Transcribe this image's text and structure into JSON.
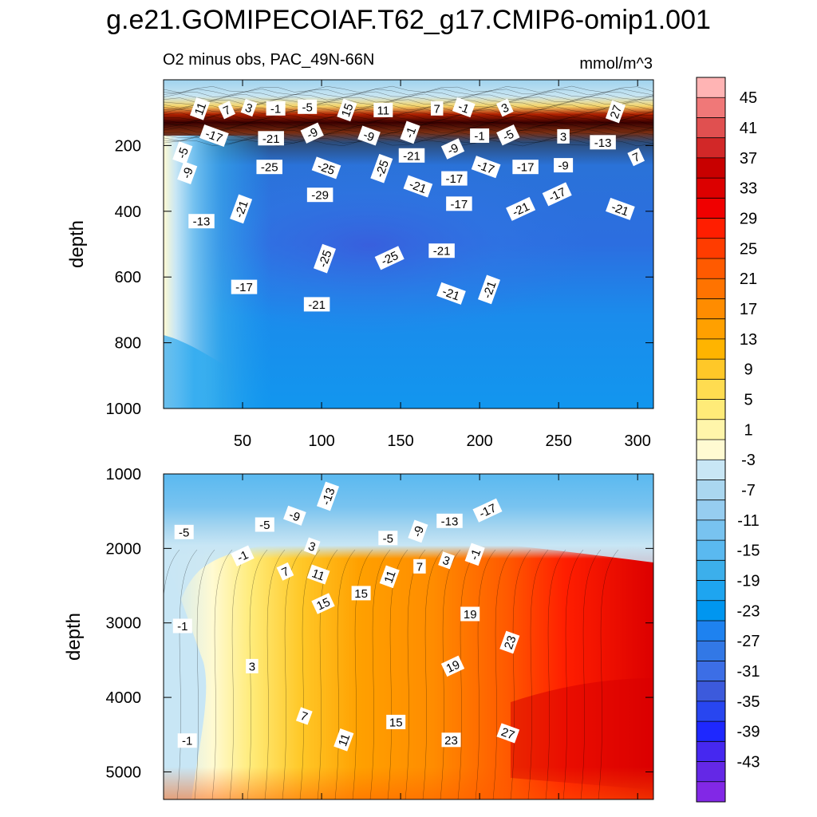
{
  "title": "g.e21.GOMIPECOIAF.T62_g17.CMIP6-omip1.001",
  "subtitle": "O2 minus obs, PAC_49N-66N",
  "units": "mmol/m^3",
  "chart_data": [
    {
      "type": "heatmap",
      "panel": "upper",
      "xlabel": "",
      "ylabel": "depth",
      "x_ticks": [
        50,
        100,
        150,
        200,
        250,
        300
      ],
      "xlim": [
        0,
        310
      ],
      "y_ticks": [
        200,
        400,
        600,
        800,
        1000
      ],
      "ylim": [
        0,
        1000
      ],
      "y_reversed": true,
      "contour_labels": [
        {
          "x": 23,
          "y": 88,
          "v": "11"
        },
        {
          "x": 40,
          "y": 92,
          "v": "7"
        },
        {
          "x": 54,
          "y": 85,
          "v": "3"
        },
        {
          "x": 71,
          "y": 87,
          "v": "-1"
        },
        {
          "x": 91,
          "y": 82,
          "v": "-5"
        },
        {
          "x": 116,
          "y": 92,
          "v": "15"
        },
        {
          "x": 139,
          "y": 92,
          "v": "11"
        },
        {
          "x": 173,
          "y": 87,
          "v": "7"
        },
        {
          "x": 190,
          "y": 84,
          "v": "-1"
        },
        {
          "x": 216,
          "y": 85,
          "v": "3"
        },
        {
          "x": 286,
          "y": 97,
          "v": "27"
        },
        {
          "x": 32,
          "y": 170,
          "v": "-17"
        },
        {
          "x": 68,
          "y": 178,
          "v": "-21"
        },
        {
          "x": 94,
          "y": 162,
          "v": "-9"
        },
        {
          "x": 130,
          "y": 170,
          "v": "-9"
        },
        {
          "x": 156,
          "y": 160,
          "v": "-1"
        },
        {
          "x": 200,
          "y": 170,
          "v": "-1"
        },
        {
          "x": 218,
          "y": 168,
          "v": "-5"
        },
        {
          "x": 253,
          "y": 172,
          "v": "3"
        },
        {
          "x": 278,
          "y": 190,
          "v": "-13"
        },
        {
          "x": 12,
          "y": 222,
          "v": "-5"
        },
        {
          "x": 183,
          "y": 210,
          "v": "-9"
        },
        {
          "x": 157,
          "y": 230,
          "v": "-21"
        },
        {
          "x": 103,
          "y": 268,
          "v": "-25"
        },
        {
          "x": 67,
          "y": 265,
          "v": "-25"
        },
        {
          "x": 138,
          "y": 270,
          "v": "-25"
        },
        {
          "x": 204,
          "y": 265,
          "v": "-17"
        },
        {
          "x": 229,
          "y": 265,
          "v": "-17"
        },
        {
          "x": 253,
          "y": 260,
          "v": "-9"
        },
        {
          "x": 299,
          "y": 235,
          "v": "7"
        },
        {
          "x": 15,
          "y": 283,
          "v": "-9"
        },
        {
          "x": 184,
          "y": 300,
          "v": "-17"
        },
        {
          "x": 161,
          "y": 324,
          "v": "-21"
        },
        {
          "x": 249,
          "y": 348,
          "v": "-17"
        },
        {
          "x": 99,
          "y": 350,
          "v": "-29"
        },
        {
          "x": 49,
          "y": 393,
          "v": "-21"
        },
        {
          "x": 187,
          "y": 377,
          "v": "-17"
        },
        {
          "x": 226,
          "y": 393,
          "v": "-21"
        },
        {
          "x": 289,
          "y": 393,
          "v": "-21"
        },
        {
          "x": 24,
          "y": 430,
          "v": "-13"
        },
        {
          "x": 102,
          "y": 544,
          "v": "-25"
        },
        {
          "x": 143,
          "y": 542,
          "v": "-25"
        },
        {
          "x": 176,
          "y": 520,
          "v": "-21"
        },
        {
          "x": 51,
          "y": 630,
          "v": "-17"
        },
        {
          "x": 182,
          "y": 650,
          "v": "-21"
        },
        {
          "x": 206,
          "y": 638,
          "v": "-21"
        },
        {
          "x": 97,
          "y": 683,
          "v": "-21"
        }
      ]
    },
    {
      "type": "heatmap",
      "panel": "lower",
      "xlabel": "",
      "ylabel": "depth",
      "xlim": [
        0,
        310
      ],
      "y_ticks": [
        1000,
        2000,
        3000,
        4000,
        5000
      ],
      "ylim": [
        1000,
        5370
      ],
      "y_reversed": true,
      "contour_labels": [
        {
          "x": 104,
          "y": 1300,
          "v": "-13"
        },
        {
          "x": 205,
          "y": 1490,
          "v": "-17"
        },
        {
          "x": 83,
          "y": 1560,
          "v": "-9"
        },
        {
          "x": 64,
          "y": 1680,
          "v": "-5"
        },
        {
          "x": 181,
          "y": 1630,
          "v": "-13"
        },
        {
          "x": 161,
          "y": 1770,
          "v": "-9"
        },
        {
          "x": 142,
          "y": 1860,
          "v": "-5"
        },
        {
          "x": 13,
          "y": 1780,
          "v": "-5"
        },
        {
          "x": 94,
          "y": 1970,
          "v": "3"
        },
        {
          "x": 50,
          "y": 2100,
          "v": "-1"
        },
        {
          "x": 197,
          "y": 2080,
          "v": "-1"
        },
        {
          "x": 179,
          "y": 2160,
          "v": "3"
        },
        {
          "x": 162,
          "y": 2240,
          "v": "7"
        },
        {
          "x": 77,
          "y": 2310,
          "v": "7"
        },
        {
          "x": 98,
          "y": 2350,
          "v": "11"
        },
        {
          "x": 143,
          "y": 2380,
          "v": "11"
        },
        {
          "x": 125,
          "y": 2600,
          "v": "15"
        },
        {
          "x": 101,
          "y": 2740,
          "v": "15"
        },
        {
          "x": 194,
          "y": 2880,
          "v": "19"
        },
        {
          "x": 12,
          "y": 3040,
          "v": "-1"
        },
        {
          "x": 219,
          "y": 3260,
          "v": "23"
        },
        {
          "x": 183,
          "y": 3580,
          "v": "19"
        },
        {
          "x": 56,
          "y": 3580,
          "v": "3"
        },
        {
          "x": 89,
          "y": 4250,
          "v": "7"
        },
        {
          "x": 147,
          "y": 4330,
          "v": "15"
        },
        {
          "x": 114,
          "y": 4570,
          "v": "11"
        },
        {
          "x": 218,
          "y": 4480,
          "v": "27"
        },
        {
          "x": 182,
          "y": 4570,
          "v": "23"
        },
        {
          "x": 15,
          "y": 4580,
          "v": "-1"
        }
      ]
    }
  ],
  "colorbar": {
    "labels": [
      "45",
      "41",
      "37",
      "33",
      "29",
      "25",
      "21",
      "17",
      "13",
      "9",
      "5",
      "1",
      "-3",
      "-7",
      "-11",
      "-15",
      "-19",
      "-23",
      "-27",
      "-31",
      "-35",
      "-39",
      "-43"
    ],
    "colors": [
      "#ffb4b4",
      "#f07878",
      "#e05050",
      "#d22828",
      "#c80000",
      "#dc0000",
      "#f00000",
      "#ff1e00",
      "#ff3c00",
      "#ff5a00",
      "#ff7300",
      "#ff8c00",
      "#ffa000",
      "#ffb400",
      "#ffc828",
      "#ffdc50",
      "#ffeb78",
      "#fff5aa",
      "#fffad2",
      "#c8e6f5",
      "#aad7f0",
      "#96cdf0",
      "#78c3f0",
      "#5ab9f0",
      "#3cafeb",
      "#1ea5f0",
      "#0096f0",
      "#1e82f0",
      "#3278e6",
      "#3c6ee6",
      "#3c5adc",
      "#2846f0",
      "#1e28ff",
      "#4628f0",
      "#6428e6",
      "#8228e6"
    ]
  }
}
